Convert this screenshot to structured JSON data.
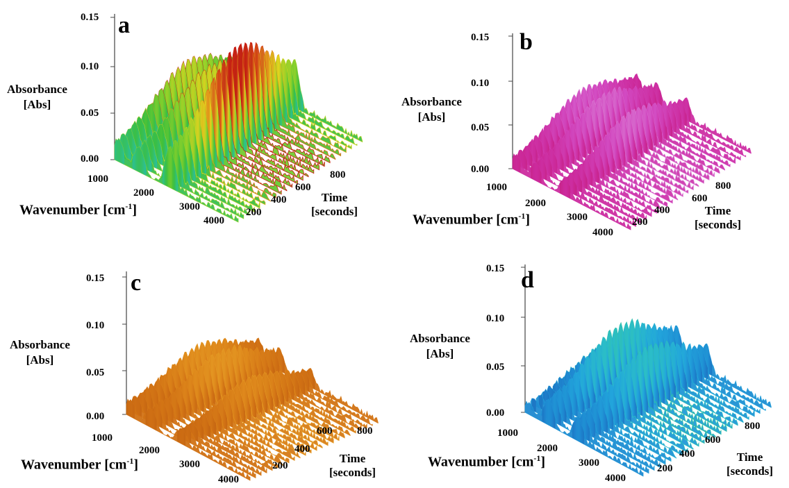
{
  "chart_data": [
    {
      "panel": "a",
      "type": "surface3d",
      "zlabel": "Absorbance\n[Abs]",
      "xlabel": "Wavenumber [cm-1]",
      "ylabel": "Time\n[seconds]",
      "z_ticks": [
        "0.00",
        "0.05",
        "0.10",
        "0.15"
      ],
      "x_ticks": [
        "1000",
        "2000",
        "3000",
        "4000"
      ],
      "y_ticks": [
        "200",
        "400",
        "600",
        "800"
      ],
      "zlim": [
        0,
        0.15
      ],
      "colormap": [
        "#1fb3c6",
        "#2ec08a",
        "#3cbf3c",
        "#8ed12a",
        "#e6d21d",
        "#e0701a",
        "#c81a12"
      ],
      "peaks": [
        {
          "wavenumber": 1100,
          "absorbance": 0.06,
          "note": "green peak"
        },
        {
          "wavenumber": 1600,
          "absorbance": 0.065,
          "note": "green peak"
        },
        {
          "wavenumber": 2350,
          "absorbance": 0.105,
          "note": "red peak"
        }
      ]
    },
    {
      "panel": "b",
      "type": "surface3d",
      "zlabel": "Absorbance\n[Abs]",
      "xlabel": "Wavenumber [cm-1]",
      "ylabel": "Time\n[seconds]",
      "z_ticks": [
        "0.00",
        "0.05",
        "0.10",
        "0.15"
      ],
      "x_ticks": [
        "1000",
        "2000",
        "3000",
        "4000"
      ],
      "y_ticks": [
        "200",
        "400",
        "600",
        "800"
      ],
      "zlim": [
        0,
        0.15
      ],
      "colormap": [
        "#c01a6e",
        "#cc2a9c",
        "#d24ac2",
        "#dc8ad8",
        "#e8c8ea",
        "#f4f0f6"
      ],
      "peaks": [
        {
          "wavenumber": 1100,
          "absorbance": 0.045
        },
        {
          "wavenumber": 1600,
          "absorbance": 0.05
        },
        {
          "wavenumber": 2350,
          "absorbance": 0.05
        }
      ]
    },
    {
      "panel": "c",
      "type": "surface3d",
      "zlabel": "Absorbance\n[Abs]",
      "xlabel": "Wavenumber [cm-1]",
      "ylabel": "Time\n[seconds]",
      "z_ticks": [
        "0.00",
        "0.05",
        "0.10",
        "0.15"
      ],
      "x_ticks": [
        "1000",
        "2000",
        "3000",
        "4000"
      ],
      "y_ticks": [
        "200",
        "400",
        "600",
        "800"
      ],
      "zlim": [
        0,
        0.15
      ],
      "colormap": [
        "#b85a10",
        "#cf6f14",
        "#df8a1c",
        "#e8a42a",
        "#eec13a",
        "#f2d85a"
      ],
      "peaks": [
        {
          "wavenumber": 1100,
          "absorbance": 0.045
        },
        {
          "wavenumber": 1600,
          "absorbance": 0.05
        },
        {
          "wavenumber": 2350,
          "absorbance": 0.04
        }
      ]
    },
    {
      "panel": "d",
      "type": "surface3d",
      "zlabel": "Absorbance\n[Abs]",
      "xlabel": "Wavenumber [cm-1]",
      "ylabel": "Time\n[seconds]",
      "z_ticks": [
        "0.00",
        "0.05",
        "0.10",
        "0.15"
      ],
      "x_ticks": [
        "1000",
        "2000",
        "3000",
        "4000"
      ],
      "y_ticks": [
        "200",
        "400",
        "600",
        "800"
      ],
      "zlim": [
        0,
        0.15
      ],
      "colormap": [
        "#1c5fb0",
        "#1e84cf",
        "#22a6dc",
        "#2cc0c6",
        "#34c08a",
        "#3dbd3d"
      ],
      "peaks": [
        {
          "wavenumber": 1100,
          "absorbance": 0.03
        },
        {
          "wavenumber": 1600,
          "absorbance": 0.065
        },
        {
          "wavenumber": 2350,
          "absorbance": 0.06
        }
      ]
    }
  ]
}
